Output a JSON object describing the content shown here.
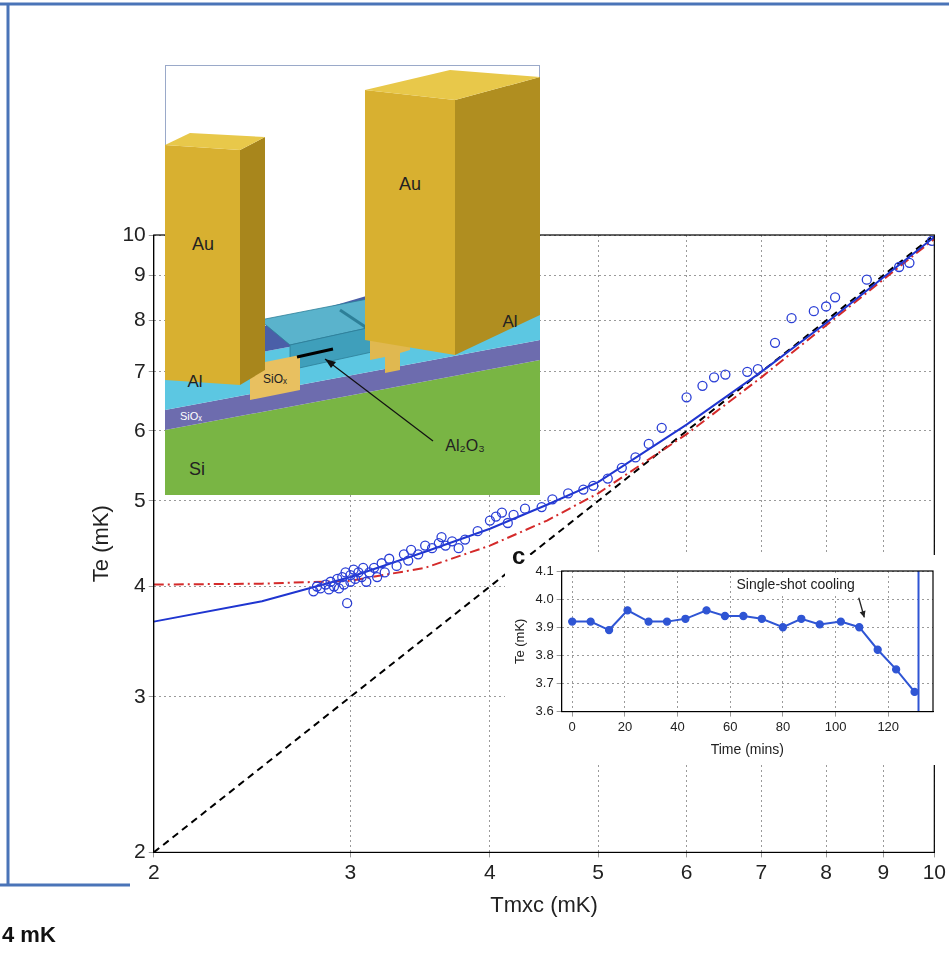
{
  "chart_data": [
    {
      "type": "scatter",
      "x_label": "Tmxc (mK)",
      "y_label": "Te (mK)",
      "log": true,
      "grid": true,
      "xlim": [
        2,
        10
      ],
      "ylim": [
        2,
        10
      ],
      "xticks": [
        2,
        3,
        4,
        5,
        6,
        7,
        8,
        9,
        10
      ],
      "yticks": [
        2,
        3,
        4,
        5,
        6,
        7,
        8,
        9,
        10
      ],
      "series": [
        {
          "type": "scatter",
          "marker": "open_circle",
          "color": "#2b3fd6",
          "x": [
            2.78,
            2.8,
            2.82,
            2.85,
            2.87,
            2.88,
            2.9,
            2.92,
            2.93,
            2.95,
            2.96,
            2.97,
            2.98,
            3.0,
            3.0,
            3.02,
            3.03,
            3.05,
            3.07,
            3.08,
            3.1,
            3.12,
            3.15,
            3.17,
            3.2,
            3.22,
            3.25,
            3.3,
            3.35,
            3.38,
            3.4,
            3.45,
            3.5,
            3.55,
            3.6,
            3.62,
            3.65,
            3.7,
            3.75,
            3.8,
            3.9,
            4.0,
            4.05,
            4.1,
            4.15,
            4.2,
            4.3,
            4.45,
            4.55,
            4.7,
            4.85,
            4.95,
            5.1,
            5.25,
            5.4,
            5.55,
            5.7,
            6.0,
            6.2,
            6.35,
            6.5,
            6.8,
            6.95,
            7.2,
            7.45,
            7.8,
            8.0,
            8.15,
            8.7,
            9.3,
            9.5,
            9.95
          ],
          "values": [
            3.95,
            4.0,
            3.98,
            4.02,
            3.97,
            4.05,
            4.0,
            4.08,
            3.98,
            4.1,
            4.02,
            4.15,
            3.83,
            4.05,
            4.12,
            4.18,
            4.08,
            4.15,
            4.1,
            4.2,
            4.05,
            4.15,
            4.2,
            4.1,
            4.25,
            4.15,
            4.3,
            4.22,
            4.35,
            4.28,
            4.4,
            4.35,
            4.45,
            4.42,
            4.48,
            4.55,
            4.45,
            4.5,
            4.42,
            4.52,
            4.62,
            4.75,
            4.8,
            4.85,
            4.72,
            4.82,
            4.9,
            4.92,
            5.02,
            5.1,
            5.15,
            5.2,
            5.3,
            5.45,
            5.6,
            5.8,
            6.05,
            6.55,
            6.75,
            6.9,
            6.95,
            7.0,
            7.05,
            7.55,
            8.05,
            8.2,
            8.3,
            8.5,
            8.9,
            9.2,
            9.3,
            9.85
          ]
        },
        {
          "type": "line",
          "line_style": "solid",
          "color": "#1f35d0",
          "x": [
            2,
            2.5,
            3,
            3.5,
            4,
            4.5,
            5,
            6,
            7,
            8,
            9,
            10
          ],
          "values": [
            3.65,
            3.85,
            4.1,
            4.38,
            4.65,
            4.95,
            5.25,
            6.1,
            7.0,
            7.95,
            8.95,
            9.95
          ]
        },
        {
          "type": "line",
          "line_style": "dashdot",
          "color": "#d42a2a",
          "x": [
            2,
            2.5,
            3,
            3.5,
            4,
            4.5,
            5,
            6,
            7,
            8,
            9,
            10
          ],
          "values": [
            4.02,
            4.03,
            4.06,
            4.2,
            4.45,
            4.75,
            5.1,
            5.95,
            6.9,
            7.9,
            8.9,
            9.9
          ]
        },
        {
          "type": "line",
          "line_style": "dashed",
          "color": "#000000",
          "x": [
            2,
            10
          ],
          "values": [
            2,
            10
          ]
        }
      ]
    },
    {
      "type": "line",
      "panel": "c",
      "x_label": "Time (mins)",
      "y_label": "Te (mK)",
      "grid": true,
      "xlim": [
        -4,
        137
      ],
      "ylim": [
        3.6,
        4.1
      ],
      "xticks": [
        0,
        20,
        40,
        60,
        80,
        100,
        120
      ],
      "yticks": [
        3.6,
        3.7,
        3.8,
        3.9,
        {
          "value": 4,
          "label": "4.0"
        },
        4.1
      ],
      "annotations": [
        "Single-shot cooling"
      ],
      "series": [
        {
          "marker": "circle",
          "line_style": "solid",
          "color": "#2f55d4",
          "x": [
            0,
            7,
            14,
            21,
            29,
            36,
            43,
            51,
            58,
            65,
            72,
            80,
            87,
            94,
            102,
            109,
            116,
            123,
            130
          ],
          "values": [
            3.92,
            3.92,
            3.89,
            3.96,
            3.92,
            3.92,
            3.93,
            3.96,
            3.94,
            3.94,
            3.93,
            3.9,
            3.93,
            3.91,
            3.92,
            3.9,
            3.82,
            3.75,
            3.67
          ]
        },
        {
          "marker": "none",
          "line_style": "solid",
          "color": "#2f55d4",
          "x": [
            131.5,
            131.5
          ],
          "values": [
            3.6,
            4.1
          ]
        }
      ]
    }
  ],
  "device_diagram": {
    "pillars": [
      "Au",
      "Au"
    ],
    "electrodes": [
      "Al",
      "Al"
    ],
    "oxide_pad": "SiOₓ",
    "insulator_layer": "SiOₓ",
    "substrate": "Si",
    "barrier": "Al₂O₃"
  },
  "text_fragment": "4 mK"
}
